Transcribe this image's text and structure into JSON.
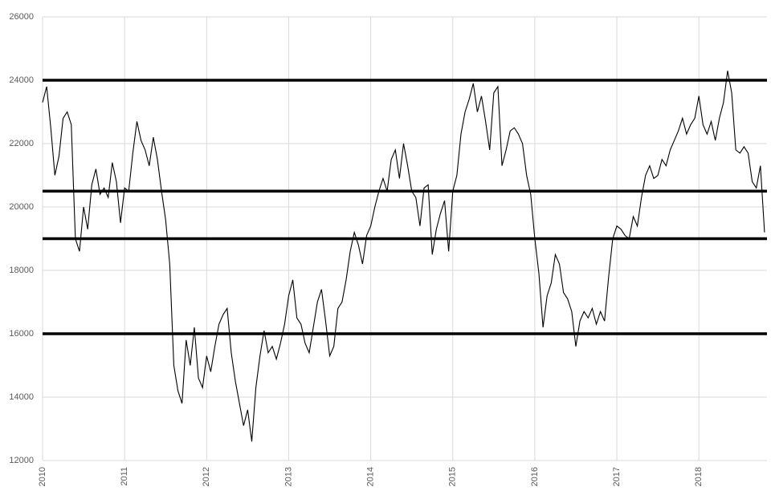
{
  "chart_data": {
    "type": "line",
    "color": "#000000",
    "grid": true,
    "xlim": [
      2010,
      2018.83
    ],
    "xticks": [
      2010,
      2011,
      2012,
      2013,
      2014,
      2015,
      2016,
      2017,
      2018
    ],
    "ylim": [
      12000,
      26000
    ],
    "yticks": [
      12000,
      14000,
      16000,
      18000,
      20000,
      22000,
      24000,
      26000
    ],
    "hlines": [
      24000,
      20500,
      19000,
      16000
    ],
    "hline_color": "#000000",
    "x": [
      2010.0,
      2010.05,
      2010.1,
      2010.15,
      2010.2,
      2010.25,
      2010.3,
      2010.35,
      2010.4,
      2010.45,
      2010.5,
      2010.55,
      2010.6,
      2010.65,
      2010.7,
      2010.75,
      2010.8,
      2010.85,
      2010.9,
      2010.95,
      2011.0,
      2011.05,
      2011.1,
      2011.15,
      2011.2,
      2011.25,
      2011.3,
      2011.35,
      2011.4,
      2011.45,
      2011.5,
      2011.55,
      2011.6,
      2011.65,
      2011.7,
      2011.75,
      2011.8,
      2011.85,
      2011.9,
      2011.95,
      2012.0,
      2012.05,
      2012.1,
      2012.15,
      2012.2,
      2012.25,
      2012.3,
      2012.35,
      2012.4,
      2012.45,
      2012.5,
      2012.55,
      2012.6,
      2012.65,
      2012.7,
      2012.75,
      2012.8,
      2012.85,
      2012.9,
      2012.95,
      2013.0,
      2013.05,
      2013.1,
      2013.15,
      2013.2,
      2013.25,
      2013.3,
      2013.35,
      2013.4,
      2013.45,
      2013.5,
      2013.55,
      2013.6,
      2013.65,
      2013.7,
      2013.75,
      2013.8,
      2013.85,
      2013.9,
      2013.95,
      2014.0,
      2014.05,
      2014.1,
      2014.15,
      2014.2,
      2014.25,
      2014.3,
      2014.35,
      2014.4,
      2014.45,
      2014.5,
      2014.55,
      2014.6,
      2014.65,
      2014.7,
      2014.75,
      2014.8,
      2014.85,
      2014.9,
      2014.95,
      2015.0,
      2015.05,
      2015.1,
      2015.15,
      2015.2,
      2015.25,
      2015.3,
      2015.35,
      2015.4,
      2015.45,
      2015.5,
      2015.55,
      2015.6,
      2015.65,
      2015.7,
      2015.75,
      2015.8,
      2015.85,
      2015.9,
      2015.95,
      2016.0,
      2016.05,
      2016.1,
      2016.15,
      2016.2,
      2016.25,
      2016.3,
      2016.35,
      2016.4,
      2016.45,
      2016.5,
      2016.55,
      2016.6,
      2016.65,
      2016.7,
      2016.75,
      2016.8,
      2016.85,
      2016.9,
      2016.95,
      2017.0,
      2017.05,
      2017.1,
      2017.15,
      2017.2,
      2017.25,
      2017.3,
      2017.35,
      2017.4,
      2017.45,
      2017.5,
      2017.55,
      2017.6,
      2017.65,
      2017.7,
      2017.75,
      2017.8,
      2017.85,
      2017.9,
      2017.95,
      2018.0,
      2018.05,
      2018.1,
      2018.15,
      2018.2,
      2018.25,
      2018.3,
      2018.35,
      2018.4,
      2018.45,
      2018.5,
      2018.55,
      2018.6,
      2018.65,
      2018.7,
      2018.75,
      2018.8
    ],
    "values": [
      23300,
      23800,
      22500,
      21000,
      21600,
      22800,
      23000,
      22600,
      19000,
      18600,
      20000,
      19300,
      20700,
      21200,
      20400,
      20600,
      20300,
      21400,
      20800,
      19500,
      20600,
      20500,
      21700,
      22700,
      22100,
      21800,
      21300,
      22200,
      21500,
      20500,
      19600,
      18200,
      15000,
      14200,
      13800,
      15800,
      15000,
      16200,
      14600,
      14300,
      15300,
      14800,
      15600,
      16300,
      16600,
      16800,
      15400,
      14500,
      13800,
      13100,
      13600,
      12600,
      14300,
      15300,
      16100,
      15400,
      15600,
      15200,
      15700,
      16300,
      17200,
      17700,
      16500,
      16300,
      15700,
      15400,
      16200,
      17000,
      17400,
      16400,
      15300,
      15600,
      16800,
      17000,
      17700,
      18600,
      19200,
      18800,
      18200,
      19100,
      19400,
      20000,
      20500,
      20900,
      20500,
      21500,
      21800,
      20900,
      22000,
      21300,
      20500,
      20300,
      19400,
      20600,
      20700,
      18500,
      19300,
      19800,
      20200,
      18600,
      20500,
      21000,
      22300,
      23000,
      23400,
      23900,
      23000,
      23500,
      22700,
      21800,
      23600,
      23800,
      21300,
      21800,
      22400,
      22500,
      22300,
      22000,
      21000,
      20400,
      19000,
      17900,
      16200,
      17200,
      17600,
      18500,
      18200,
      17300,
      17100,
      16700,
      15600,
      16400,
      16700,
      16500,
      16800,
      16300,
      16700,
      16400,
      17800,
      19000,
      19400,
      19300,
      19100,
      19000,
      19700,
      19400,
      20300,
      21000,
      21300,
      20900,
      21000,
      21500,
      21300,
      21800,
      22100,
      22400,
      22800,
      22300,
      22600,
      22800,
      23500,
      22600,
      22300,
      22700,
      22100,
      22800,
      23300,
      24300,
      23600,
      21800,
      21700,
      21900,
      21700,
      20800,
      20600,
      21300,
      19200
    ]
  }
}
